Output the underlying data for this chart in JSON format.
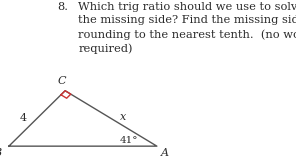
{
  "question_number": "8.",
  "question_text": "Which trig ratio should we use to solve for\nthe missing side? Find the missing side,\nrounding to the nearest tenth.  (no work\nrequired)",
  "triangle": {
    "B": [
      0.03,
      0.13
    ],
    "A": [
      0.53,
      0.13
    ],
    "C": [
      0.22,
      0.46
    ]
  },
  "label_B": "B",
  "label_A": "A",
  "label_C": "C",
  "label_side_BC": "4",
  "label_side_CA": "x",
  "label_angle_A": "41°",
  "right_angle_color": "#cc3333",
  "bg_color": "#ffffff",
  "text_color": "#2a2a2a",
  "line_color": "#555555",
  "font_size_question": 8.2,
  "font_size_labels": 8.0
}
